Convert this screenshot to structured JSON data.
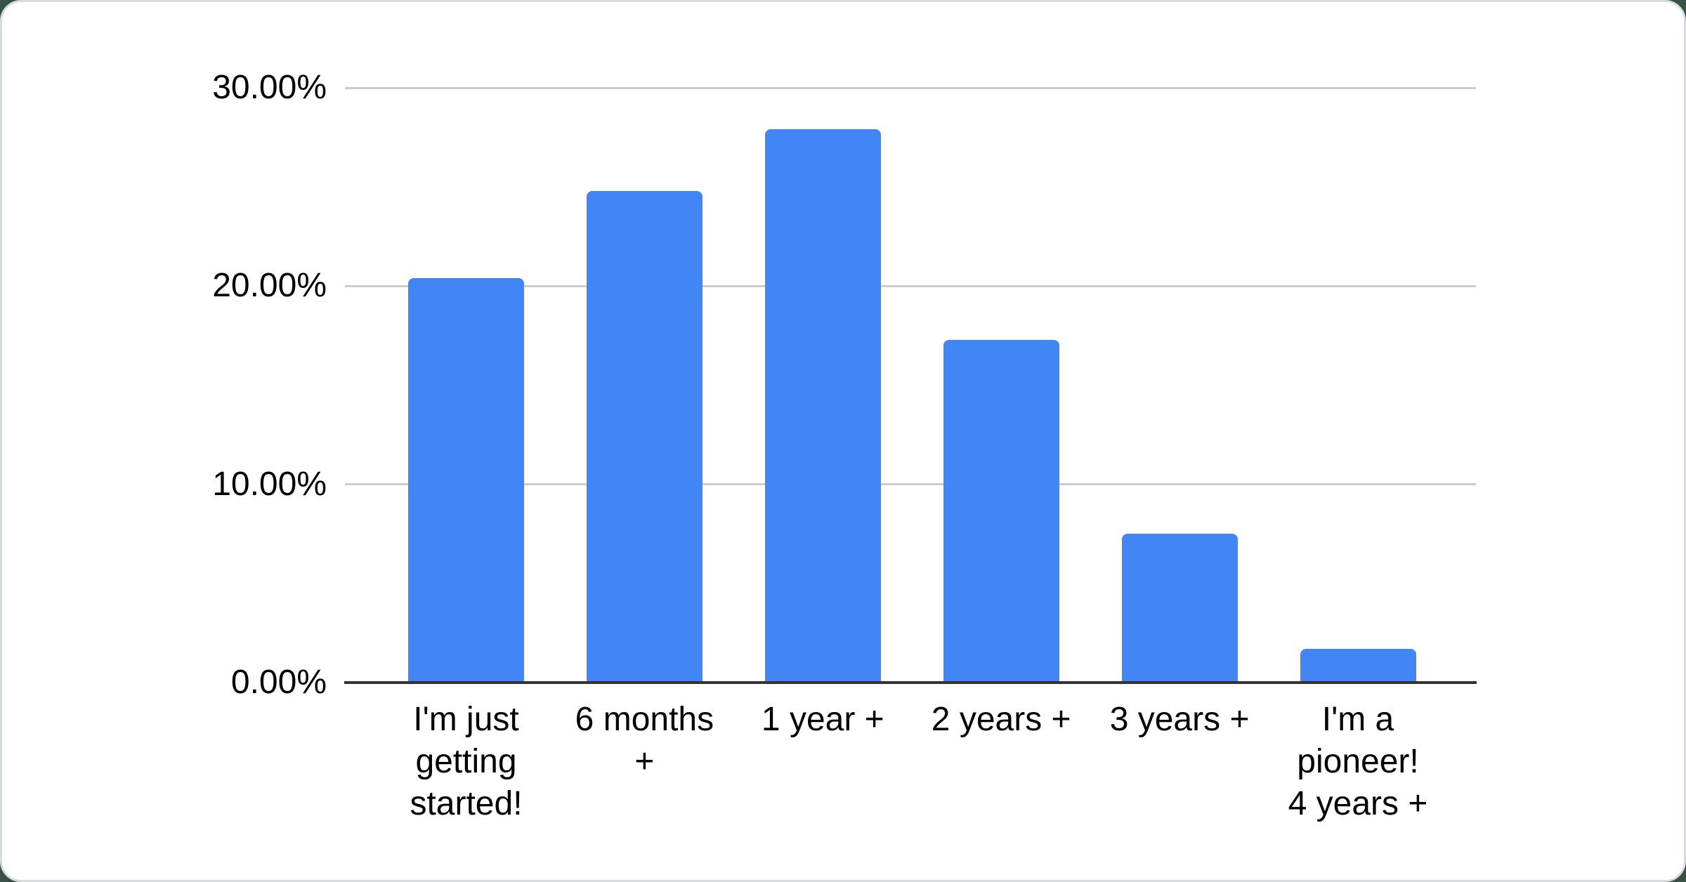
{
  "page_bg": "#3A5245",
  "card": {
    "bg": "#FFFFFF",
    "border_color": "#D8DBDE"
  },
  "chart_data": {
    "type": "bar",
    "title": "",
    "xlabel": "",
    "ylabel": "",
    "unit": "percent",
    "categories": [
      "I'm just getting started!",
      "6 months +",
      "1 year +",
      "2 years +",
      "3 years +",
      "I'm a pioneer! 4 years +"
    ],
    "category_lines": [
      [
        "I'm just",
        "getting",
        "started!"
      ],
      [
        "6 months",
        "+"
      ],
      [
        "1 year +"
      ],
      [
        "2 years +"
      ],
      [
        "3 years +"
      ],
      [
        "I'm a",
        "pioneer!",
        "4 years +"
      ]
    ],
    "values": [
      20.4,
      24.8,
      27.9,
      17.3,
      7.5,
      1.7
    ],
    "y_ticks": [
      {
        "value": 0,
        "label": "0.00%"
      },
      {
        "value": 10,
        "label": "10.00%"
      },
      {
        "value": 20,
        "label": "20.00%"
      },
      {
        "value": 30,
        "label": "30.00%"
      }
    ],
    "ylim": [
      0,
      30
    ],
    "grid": true,
    "legend_position": "none",
    "bar_color": "#4285F4",
    "gridline_color": "#CCCCCC",
    "axis_line_color": "#333333",
    "label_color": "#000000"
  }
}
